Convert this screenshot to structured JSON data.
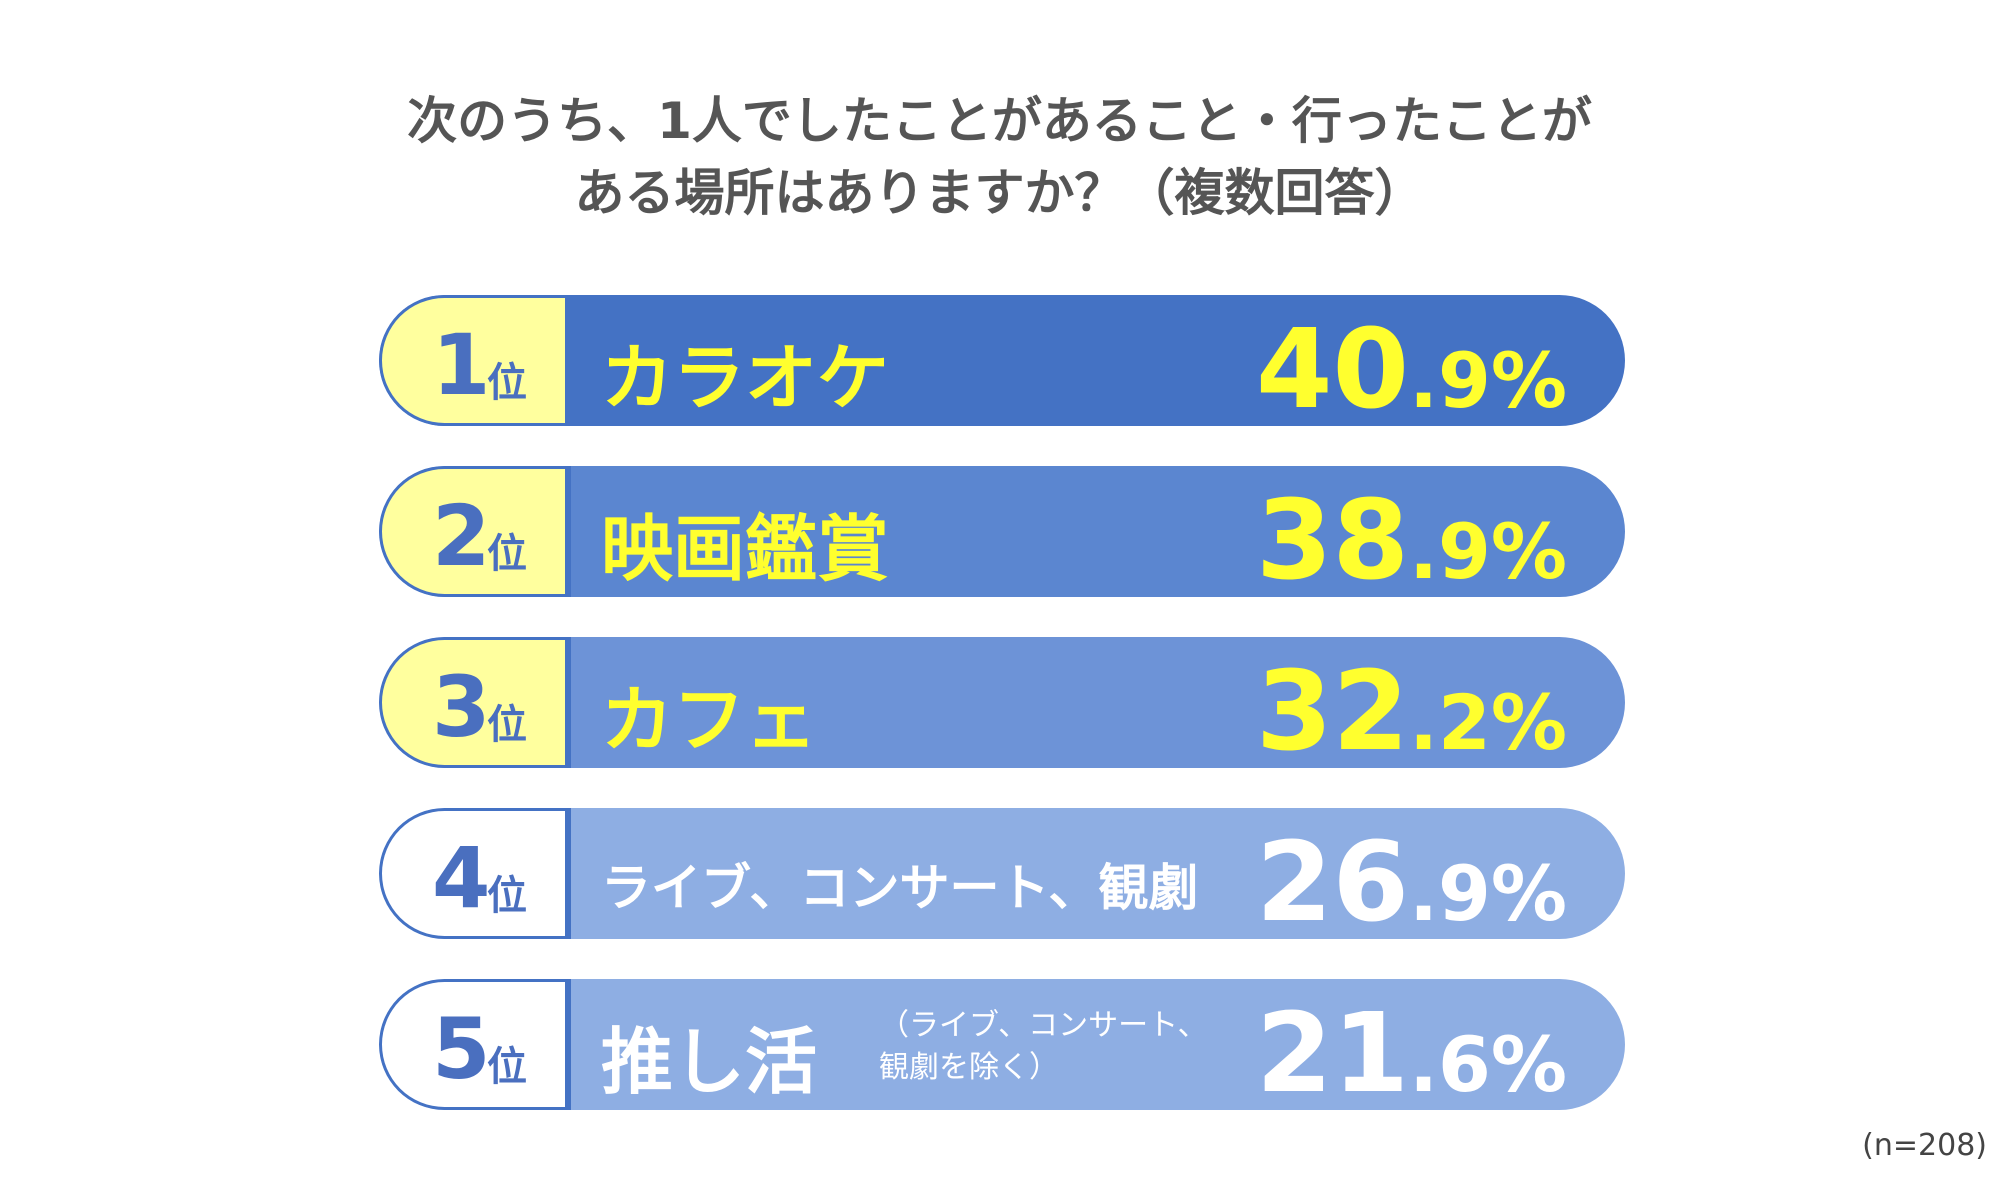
{
  "chart_data": {
    "type": "table",
    "title_lines": [
      "次のうち、1人でしたことがあること・行ったことが",
      "ある場所はありますか？（複数回答）"
    ],
    "rank_suffix": "位",
    "items": [
      {
        "rank": "1",
        "label": "カラオケ",
        "sub": "",
        "value": 40.9,
        "int": "40",
        "dec": ".9%",
        "bg": "#4472c4",
        "rank_bg": "#ffff9e",
        "text_color": "#ffff2e"
      },
      {
        "rank": "2",
        "label": "映画鑑賞",
        "sub": "",
        "value": 38.9,
        "int": "38",
        "dec": ".9%",
        "bg": "#5b86d0",
        "rank_bg": "#ffff9e",
        "text_color": "#ffff2e"
      },
      {
        "rank": "3",
        "label": "カフェ",
        "sub": "",
        "value": 32.2,
        "int": "32",
        "dec": ".2%",
        "bg": "#6d93d7",
        "rank_bg": "#ffff9e",
        "text_color": "#ffff2e"
      },
      {
        "rank": "4",
        "label": "ライブ、コンサート、観劇",
        "sub": "",
        "value": 26.9,
        "int": "26",
        "dec": ".9%",
        "bg": "#8eaee3",
        "rank_bg": "#ffffff",
        "text_color": "#ffffff"
      },
      {
        "rank": "5",
        "label": "推し活",
        "sub": "（ライブ、コンサート、\n観劇を除く）",
        "value": 21.6,
        "int": "21",
        "dec": ".6%",
        "bg": "#8eaee3",
        "rank_bg": "#ffffff",
        "text_color": "#ffffff"
      }
    ],
    "note": "(n=208)"
  }
}
